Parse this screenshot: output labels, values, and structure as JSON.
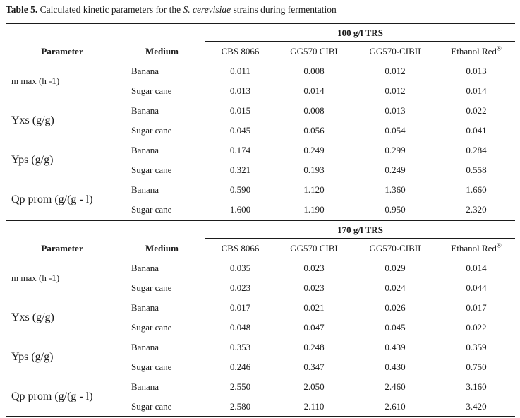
{
  "title": {
    "prefix": "Table 5.",
    "body": " Calculated kinetic parameters for the ",
    "species": "S. cerevisiae",
    "suffix": " strains during fermentation"
  },
  "table": {
    "headers": {
      "parameter": "Parameter",
      "medium": "Medium"
    },
    "strains": [
      "CBS 8066",
      "GG570 CIBI",
      "GG570-CIBII",
      "Ethanol Red"
    ],
    "strain_sup": "®",
    "sections": [
      {
        "trs": "100 g/l TRS",
        "groups": [
          {
            "parameter": "m max (h -1)",
            "rows": [
              {
                "medium": "Banana",
                "values": [
                  "0.011",
                  "0.008",
                  "0.012",
                  "0.013"
                ]
              },
              {
                "medium": "Sugar cane",
                "values": [
                  "0.013",
                  "0.014",
                  "0.012",
                  "0.014"
                ]
              }
            ]
          },
          {
            "parameter": "Yxs (g/g)",
            "rows": [
              {
                "medium": "Banana",
                "values": [
                  "0.015",
                  "0.008",
                  "0.013",
                  "0.022"
                ]
              },
              {
                "medium": "Sugar cane",
                "values": [
                  "0.045",
                  "0.056",
                  "0.054",
                  "0.041"
                ]
              }
            ]
          },
          {
            "parameter": "Yps (g/g)",
            "rows": [
              {
                "medium": "Banana",
                "values": [
                  "0.174",
                  "0.249",
                  "0.299",
                  "0.284"
                ]
              },
              {
                "medium": "Sugar cane",
                "values": [
                  "0.321",
                  "0.193",
                  "0.249",
                  "0.558"
                ]
              }
            ]
          },
          {
            "parameter": "Qp prom (g/(g - l)",
            "rows": [
              {
                "medium": "Banana",
                "values": [
                  "0.590",
                  "1.120",
                  "1.360",
                  "1.660"
                ]
              },
              {
                "medium": "Sugar cane",
                "values": [
                  "1.600",
                  "1.190",
                  "0.950",
                  "2.320"
                ]
              }
            ]
          }
        ]
      },
      {
        "trs": "170 g/l TRS",
        "groups": [
          {
            "parameter": "m max (h -1)",
            "rows": [
              {
                "medium": "Banana",
                "values": [
                  "0.035",
                  "0.023",
                  "0.029",
                  "0.014"
                ]
              },
              {
                "medium": "Sugar cane",
                "values": [
                  "0.023",
                  "0.023",
                  "0.024",
                  "0.044"
                ]
              }
            ]
          },
          {
            "parameter": "Yxs (g/g)",
            "rows": [
              {
                "medium": "Banana",
                "values": [
                  "0.017",
                  "0.021",
                  "0.026",
                  "0.017"
                ]
              },
              {
                "medium": "Sugar cane",
                "values": [
                  "0.048",
                  "0.047",
                  "0.045",
                  "0.022"
                ]
              }
            ]
          },
          {
            "parameter": "Yps (g/g)",
            "rows": [
              {
                "medium": "Banana",
                "values": [
                  "0.353",
                  "0.248",
                  "0.439",
                  "0.359"
                ]
              },
              {
                "medium": "Sugar cane",
                "values": [
                  "0.246",
                  "0.347",
                  "0.430",
                  "0.750"
                ]
              }
            ]
          },
          {
            "parameter": "Qp prom (g/(g - l)",
            "rows": [
              {
                "medium": "Banana",
                "values": [
                  "2.550",
                  "2.050",
                  "2.460",
                  "3.160"
                ]
              },
              {
                "medium": "Sugar cane",
                "values": [
                  "2.580",
                  "2.110",
                  "2.610",
                  "3.420"
                ]
              }
            ]
          }
        ]
      }
    ]
  }
}
